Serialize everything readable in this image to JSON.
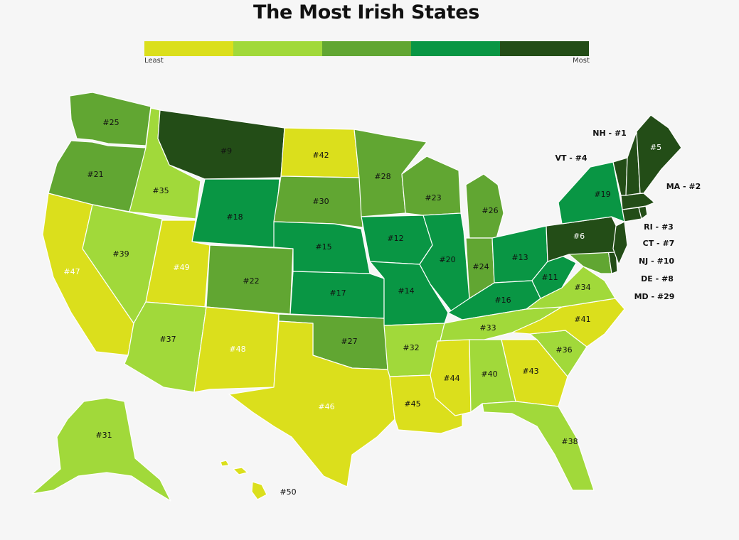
{
  "title": "The Most Irish States",
  "legend": {
    "least": "Least",
    "most": "Most",
    "colors": [
      "#dbdf1c",
      "#a1d93a",
      "#61a632",
      "#099644",
      "#234d17"
    ]
  },
  "states": {
    "WA": {
      "label": "#25",
      "rank": 25
    },
    "OR": {
      "label": "#21",
      "rank": 21
    },
    "CA": {
      "label": "#47",
      "rank": 47
    },
    "ID": {
      "label": "#35",
      "rank": 35
    },
    "NV": {
      "label": "#39",
      "rank": 39
    },
    "MT": {
      "label": "#9",
      "rank": 9
    },
    "WY": {
      "label": "#18",
      "rank": 18
    },
    "UT": {
      "label": "#49",
      "rank": 49
    },
    "AZ": {
      "label": "#37",
      "rank": 37
    },
    "CO": {
      "label": "#22",
      "rank": 22
    },
    "NM": {
      "label": "#48",
      "rank": 48
    },
    "ND": {
      "label": "#42",
      "rank": 42
    },
    "SD": {
      "label": "#30",
      "rank": 30
    },
    "NE": {
      "label": "#15",
      "rank": 15
    },
    "KS": {
      "label": "#17",
      "rank": 17
    },
    "OK": {
      "label": "#27",
      "rank": 27
    },
    "TX": {
      "label": "#46",
      "rank": 46
    },
    "MN": {
      "label": "#28",
      "rank": 28
    },
    "IA": {
      "label": "#12",
      "rank": 12
    },
    "MO": {
      "label": "#14",
      "rank": 14
    },
    "AR": {
      "label": "#32",
      "rank": 32
    },
    "LA": {
      "label": "#45",
      "rank": 45
    },
    "WI": {
      "label": "#23",
      "rank": 23
    },
    "IL": {
      "label": "#20",
      "rank": 20
    },
    "MI": {
      "label": "#26",
      "rank": 26
    },
    "IN": {
      "label": "#24",
      "rank": 24
    },
    "OH": {
      "label": "#13",
      "rank": 13
    },
    "KY": {
      "label": "#16",
      "rank": 16
    },
    "TN": {
      "label": "#33",
      "rank": 33
    },
    "MS": {
      "label": "#44",
      "rank": 44
    },
    "AL": {
      "label": "#40",
      "rank": 40
    },
    "GA": {
      "label": "#43",
      "rank": 43
    },
    "FL": {
      "label": "#38",
      "rank": 38
    },
    "SC": {
      "label": "#36",
      "rank": 36
    },
    "NC": {
      "label": "#41",
      "rank": 41
    },
    "VA": {
      "label": "#34",
      "rank": 34
    },
    "WV": {
      "label": "#11",
      "rank": 11
    },
    "PA": {
      "label": "#6",
      "rank": 6
    },
    "NY": {
      "label": "#19",
      "rank": 19
    },
    "ME": {
      "label": "#5",
      "rank": 5
    },
    "AK": {
      "label": "#31",
      "rank": 31
    },
    "HI": {
      "label": "#50",
      "rank": 50
    }
  },
  "callouts": {
    "NH": "NH - #1",
    "VT": "VT - #4",
    "MA": "MA - #2",
    "RI": "RI - #3",
    "CT": "CT - #7",
    "NJ": "NJ - #10",
    "DE": "DE - #8",
    "MD": "MD - #29"
  }
}
